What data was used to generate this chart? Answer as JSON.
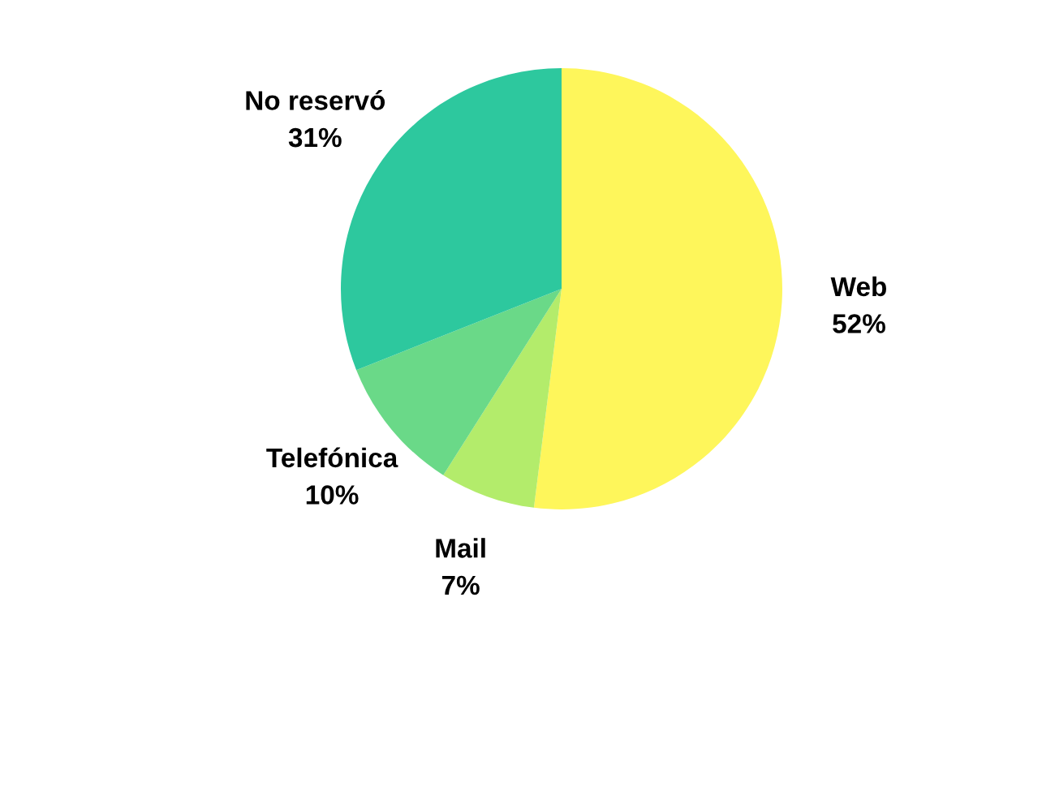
{
  "chart_data": {
    "type": "pie",
    "categories": [
      "Web",
      "Mail",
      "Telefónica",
      "No reservó"
    ],
    "values": [
      52,
      7,
      10,
      31
    ],
    "value_labels": [
      "52%",
      "7%",
      "10%",
      "31%"
    ],
    "colors": [
      "#fef65b",
      "#b3ec6b",
      "#6ad988",
      "#2dc89e"
    ],
    "legend": false
  }
}
